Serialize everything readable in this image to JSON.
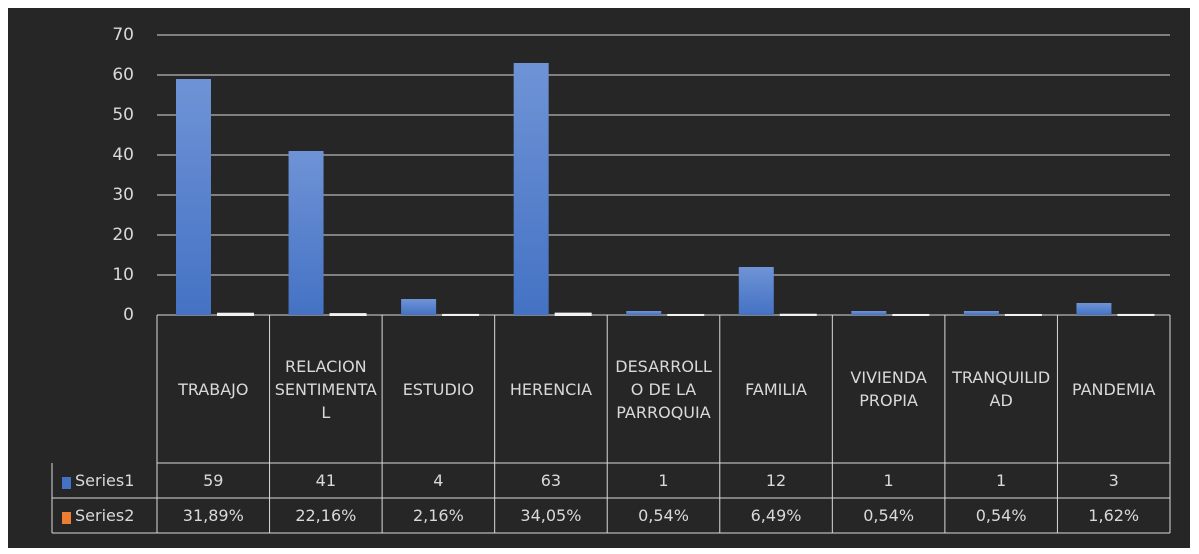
{
  "chart_data": {
    "type": "bar",
    "categories": [
      "TRABAJO",
      "RELACION SENTIMENTAL",
      "ESTUDIO",
      "HERENCIA",
      "DESARROLLO DE LA PARROQUIA",
      "FAMILIA",
      "VIVIENDA PROPIA",
      "TRANQUILIDAD",
      "PANDEMIA"
    ],
    "series": [
      {
        "name": "Series1",
        "color": "#4472c4",
        "values": [
          59,
          41,
          4,
          63,
          1,
          12,
          1,
          1,
          3
        ]
      },
      {
        "name": "Series2",
        "color": "#ed7d31",
        "values": [
          0.3189,
          0.2216,
          0.0216,
          0.3405,
          0.0054,
          0.0649,
          0.0054,
          0.0054,
          0.0162
        ],
        "value_labels": [
          "31,89%",
          "22,16%",
          "2,16%",
          "34,05%",
          "0,54%",
          "6,49%",
          "0,54%",
          "0,54%",
          "1,62%"
        ]
      }
    ],
    "ylim": [
      0,
      70
    ],
    "yticks": [
      0,
      10,
      20,
      30,
      40,
      50,
      60,
      70
    ],
    "grid": true,
    "data_table": true
  }
}
